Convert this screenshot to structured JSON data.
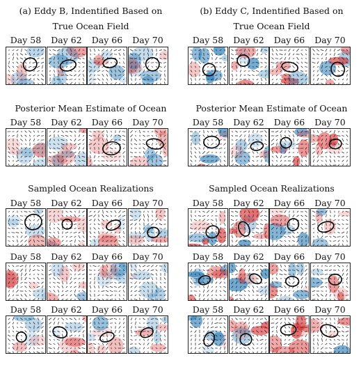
{
  "columns": [
    {
      "title": "(a) Eddy B, Indentified Based on",
      "sections": [
        {
          "title": "True Ocean Field",
          "rows": [
            [
              "Day 58",
              "Day 62",
              "Day 66",
              "Day 70"
            ]
          ]
        },
        {
          "title": "Posterior Mean Estimate of Ocean",
          "rows": [
            [
              "Day 58",
              "Day 62",
              "Day 66",
              "Day 70"
            ]
          ]
        },
        {
          "title": "Sampled Ocean Realizations",
          "rows": [
            [
              "Day 58",
              "Day 62",
              "Day 66",
              "Day 70"
            ],
            [
              "Day 58",
              "Day 62",
              "Day 66",
              "Day 70"
            ],
            [
              "Day 58",
              "Day 62",
              "Day 66",
              "Day 70"
            ]
          ]
        }
      ]
    },
    {
      "title": "(b) Eddy C, Indentified Based on",
      "sections": [
        {
          "title": "True Ocean Field",
          "rows": [
            [
              "Day 58",
              "Day 62",
              "Day 66",
              "Day 70"
            ]
          ]
        },
        {
          "title": "Posterior Mean Estimate of Ocean",
          "rows": [
            [
              "Day 58",
              "Day 62",
              "Day 66",
              "Day 70"
            ]
          ]
        },
        {
          "title": "Sampled Ocean Realizations",
          "rows": [
            [
              "Day 58",
              "Day 62",
              "Day 66",
              "Day 70"
            ],
            [
              "Day 58",
              "Day 62",
              "Day 66",
              "Day 70"
            ],
            [
              "Day 58",
              "Day 62",
              "Day 66",
              "Day 70"
            ]
          ]
        }
      ]
    }
  ],
  "colors": {
    "positive_vorticity": "#d62728",
    "negative_vorticity": "#1f77b4",
    "arrows": "#111111",
    "eddy_contour": "#000000"
  }
}
